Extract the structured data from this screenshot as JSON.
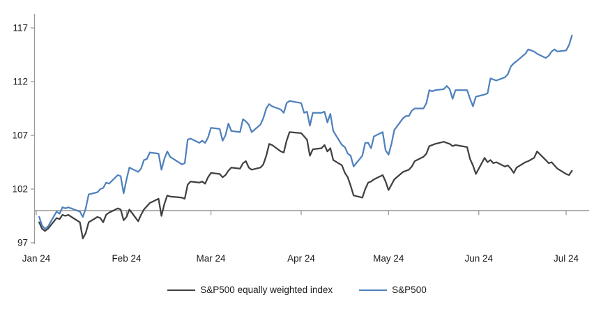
{
  "chart_data": {
    "type": "line",
    "title": "",
    "xlabel": "",
    "ylabel": "",
    "grid": false,
    "legend_position": "bottom",
    "x_axis": {
      "tick_labels": [
        "Jan 24",
        "Feb 24",
        "Mar 24",
        "Apr 24",
        "May 24",
        "Jun 24",
        "Jul 24"
      ],
      "tick_day_offsets": [
        0,
        31,
        60,
        91,
        121,
        152,
        182
      ],
      "range_days": [
        0,
        190
      ]
    },
    "y_axis": {
      "tick_labels": [
        "97",
        "102",
        "107",
        "112",
        "117"
      ],
      "ticks": [
        97,
        102,
        107,
        112,
        117
      ],
      "range": [
        97,
        117.5
      ]
    },
    "category_axis_crosses_at": 100,
    "axis_color": "#999999",
    "series": [
      {
        "name": "S&P500 equally weighted index",
        "color": "#404040",
        "points": [
          [
            1,
            98.9
          ],
          [
            2,
            98.3
          ],
          [
            3,
            98.1
          ],
          [
            4,
            98.3
          ],
          [
            7,
            99.3
          ],
          [
            8,
            99.2
          ],
          [
            9,
            99.6
          ],
          [
            10,
            99.5
          ],
          [
            11,
            99.6
          ],
          [
            15,
            98.9
          ],
          [
            16,
            97.4
          ],
          [
            17,
            97.9
          ],
          [
            18,
            98.9
          ],
          [
            21,
            99.4
          ],
          [
            22,
            99.3
          ],
          [
            23,
            98.9
          ],
          [
            24,
            99.6
          ],
          [
            25,
            99.8
          ],
          [
            28,
            100.2
          ],
          [
            29,
            100.1
          ],
          [
            30,
            99.1
          ],
          [
            31,
            99.4
          ],
          [
            32,
            100.1
          ],
          [
            35,
            99.0
          ],
          [
            36,
            99.6
          ],
          [
            37,
            100.1
          ],
          [
            38,
            100.4
          ],
          [
            39,
            100.7
          ],
          [
            42,
            101.1
          ],
          [
            43,
            99.5
          ],
          [
            44,
            100.6
          ],
          [
            45,
            101.4
          ],
          [
            46,
            101.3
          ],
          [
            50,
            101.2
          ],
          [
            51,
            101.1
          ],
          [
            52,
            102.4
          ],
          [
            53,
            102.7
          ],
          [
            56,
            102.6
          ],
          [
            57,
            102.7
          ],
          [
            58,
            102.5
          ],
          [
            59,
            103.1
          ],
          [
            60,
            103.5
          ],
          [
            63,
            103.4
          ],
          [
            64,
            103.1
          ],
          [
            65,
            103.3
          ],
          [
            66,
            103.7
          ],
          [
            67,
            104.0
          ],
          [
            70,
            103.9
          ],
          [
            71,
            104.4
          ],
          [
            72,
            104.6
          ],
          [
            73,
            104.0
          ],
          [
            74,
            103.8
          ],
          [
            77,
            104.0
          ],
          [
            78,
            104.3
          ],
          [
            79,
            105.1
          ],
          [
            80,
            106.2
          ],
          [
            81,
            106.1
          ],
          [
            84,
            105.5
          ],
          [
            85,
            105.4
          ],
          [
            86,
            106.5
          ],
          [
            87,
            107.3
          ],
          [
            91,
            107.2
          ],
          [
            92,
            106.9
          ],
          [
            93,
            106.6
          ],
          [
            94,
            105.1
          ],
          [
            95,
            105.7
          ],
          [
            98,
            105.8
          ],
          [
            99,
            106.1
          ],
          [
            100,
            105.5
          ],
          [
            101,
            105.8
          ],
          [
            102,
            104.7
          ],
          [
            105,
            104.2
          ],
          [
            106,
            103.5
          ],
          [
            107,
            103.1
          ],
          [
            108,
            102.3
          ],
          [
            109,
            101.4
          ],
          [
            112,
            101.2
          ],
          [
            113,
            102.0
          ],
          [
            114,
            102.6
          ],
          [
            115,
            102.7
          ],
          [
            116,
            102.9
          ],
          [
            119,
            103.3
          ],
          [
            120,
            102.7
          ],
          [
            121,
            101.9
          ],
          [
            122,
            102.4
          ],
          [
            123,
            102.9
          ],
          [
            126,
            103.6
          ],
          [
            127,
            103.7
          ],
          [
            128,
            103.8
          ],
          [
            129,
            104.1
          ],
          [
            130,
            104.6
          ],
          [
            133,
            105.0
          ],
          [
            134,
            105.3
          ],
          [
            135,
            106.0
          ],
          [
            136,
            106.1
          ],
          [
            137,
            106.2
          ],
          [
            140,
            106.4
          ],
          [
            141,
            106.3
          ],
          [
            142,
            106.2
          ],
          [
            143,
            106.0
          ],
          [
            144,
            106.1
          ],
          [
            148,
            105.9
          ],
          [
            149,
            104.8
          ],
          [
            150,
            104.2
          ],
          [
            151,
            103.4
          ],
          [
            154,
            104.9
          ],
          [
            155,
            104.5
          ],
          [
            156,
            104.7
          ],
          [
            157,
            104.4
          ],
          [
            158,
            104.5
          ],
          [
            161,
            104.1
          ],
          [
            162,
            104.2
          ],
          [
            163,
            103.9
          ],
          [
            164,
            103.5
          ],
          [
            165,
            104.0
          ],
          [
            168,
            104.5
          ],
          [
            169,
            104.6
          ],
          [
            171,
            104.9
          ],
          [
            172,
            105.5
          ],
          [
            175,
            104.7
          ],
          [
            176,
            104.4
          ],
          [
            177,
            104.5
          ],
          [
            178,
            104.2
          ],
          [
            179,
            103.9
          ],
          [
            182,
            103.4
          ],
          [
            183,
            103.3
          ],
          [
            184,
            103.7
          ]
        ]
      },
      {
        "name": "S&P500",
        "color": "#4f81bd",
        "points": [
          [
            1,
            99.4
          ],
          [
            2,
            98.6
          ],
          [
            3,
            98.3
          ],
          [
            4,
            98.5
          ],
          [
            7,
            99.9
          ],
          [
            8,
            99.7
          ],
          [
            9,
            100.3
          ],
          [
            10,
            100.2
          ],
          [
            11,
            100.3
          ],
          [
            15,
            99.9
          ],
          [
            16,
            99.4
          ],
          [
            17,
            100.2
          ],
          [
            18,
            101.5
          ],
          [
            21,
            101.7
          ],
          [
            22,
            102.0
          ],
          [
            23,
            102.1
          ],
          [
            24,
            102.6
          ],
          [
            25,
            102.5
          ],
          [
            28,
            103.3
          ],
          [
            29,
            103.2
          ],
          [
            30,
            101.6
          ],
          [
            31,
            102.9
          ],
          [
            32,
            104.0
          ],
          [
            35,
            103.6
          ],
          [
            36,
            103.9
          ],
          [
            37,
            104.7
          ],
          [
            38,
            104.8
          ],
          [
            39,
            105.4
          ],
          [
            42,
            105.3
          ],
          [
            43,
            103.8
          ],
          [
            44,
            104.8
          ],
          [
            45,
            105.5
          ],
          [
            46,
            105.0
          ],
          [
            50,
            104.3
          ],
          [
            51,
            104.4
          ],
          [
            52,
            106.6
          ],
          [
            53,
            106.7
          ],
          [
            56,
            106.3
          ],
          [
            57,
            106.5
          ],
          [
            58,
            106.3
          ],
          [
            59,
            106.8
          ],
          [
            60,
            107.7
          ],
          [
            63,
            107.6
          ],
          [
            64,
            106.5
          ],
          [
            65,
            107.0
          ],
          [
            66,
            108.1
          ],
          [
            67,
            107.4
          ],
          [
            70,
            107.3
          ],
          [
            71,
            108.5
          ],
          [
            72,
            108.3
          ],
          [
            73,
            108.0
          ],
          [
            74,
            107.3
          ],
          [
            77,
            108.0
          ],
          [
            78,
            108.6
          ],
          [
            79,
            109.5
          ],
          [
            80,
            109.9
          ],
          [
            81,
            109.7
          ],
          [
            84,
            109.4
          ],
          [
            85,
            109.1
          ],
          [
            86,
            110.0
          ],
          [
            87,
            110.2
          ],
          [
            91,
            110.0
          ],
          [
            92,
            109.1
          ],
          [
            93,
            109.2
          ],
          [
            94,
            107.9
          ],
          [
            95,
            109.1
          ],
          [
            98,
            109.1
          ],
          [
            99,
            109.2
          ],
          [
            100,
            108.2
          ],
          [
            101,
            109.0
          ],
          [
            102,
            107.4
          ],
          [
            105,
            106.1
          ],
          [
            106,
            105.9
          ],
          [
            107,
            105.3
          ],
          [
            108,
            105.1
          ],
          [
            109,
            104.1
          ],
          [
            112,
            105.1
          ],
          [
            113,
            106.3
          ],
          [
            114,
            106.3
          ],
          [
            115,
            105.8
          ],
          [
            116,
            106.9
          ],
          [
            119,
            107.3
          ],
          [
            120,
            105.6
          ],
          [
            121,
            105.2
          ],
          [
            122,
            106.2
          ],
          [
            123,
            107.5
          ],
          [
            126,
            108.6
          ],
          [
            127,
            108.8
          ],
          [
            128,
            108.8
          ],
          [
            129,
            109.3
          ],
          [
            130,
            109.5
          ],
          [
            133,
            109.5
          ],
          [
            134,
            110.0
          ],
          [
            135,
            111.2
          ],
          [
            136,
            111.1
          ],
          [
            137,
            111.2
          ],
          [
            140,
            111.3
          ],
          [
            141,
            111.6
          ],
          [
            142,
            111.3
          ],
          [
            143,
            110.4
          ],
          [
            144,
            111.2
          ],
          [
            148,
            111.2
          ],
          [
            149,
            110.4
          ],
          [
            150,
            109.7
          ],
          [
            151,
            110.6
          ],
          [
            154,
            110.8
          ],
          [
            155,
            110.9
          ],
          [
            156,
            112.3
          ],
          [
            157,
            112.2
          ],
          [
            158,
            112.1
          ],
          [
            161,
            112.4
          ],
          [
            162,
            112.7
          ],
          [
            163,
            113.4
          ],
          [
            164,
            113.7
          ],
          [
            165,
            113.9
          ],
          [
            168,
            114.6
          ],
          [
            169,
            115.0
          ],
          [
            171,
            114.8
          ],
          [
            172,
            114.6
          ],
          [
            175,
            114.2
          ],
          [
            176,
            114.4
          ],
          [
            177,
            114.8
          ],
          [
            178,
            115.0
          ],
          [
            179,
            114.8
          ],
          [
            182,
            114.9
          ],
          [
            183,
            115.4
          ],
          [
            184,
            116.3
          ]
        ]
      }
    ]
  },
  "legend": {
    "items": [
      {
        "label": "S&P500 equally weighted index",
        "color": "#404040"
      },
      {
        "label": "S&P500",
        "color": "#4f81bd"
      }
    ]
  }
}
